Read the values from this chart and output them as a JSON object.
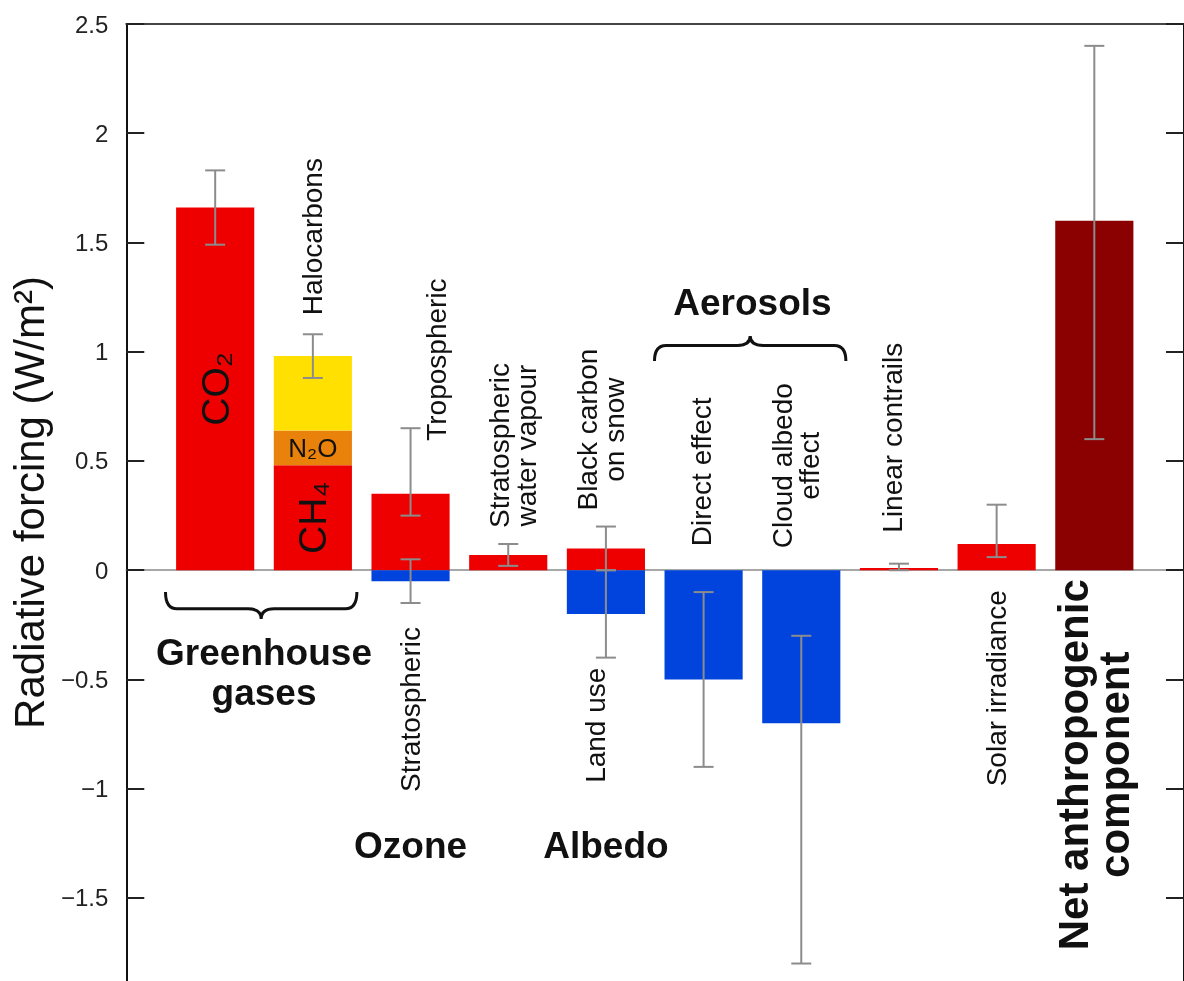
{
  "chart_data": {
    "type": "bar",
    "ylabel": "Radiative forcing (W/m²)",
    "stacked": true,
    "tick_labels": "y",
    "categories": [
      null,
      null,
      null,
      null,
      null,
      null,
      null,
      null,
      null,
      null
    ],
    "series": [
      {
        "name": "CO₂",
        "color": "#ee0000",
        "values": [
          1.66,
          null,
          null,
          null,
          null,
          null,
          null,
          null,
          null,
          null
        ],
        "errors": [
          [
            1.49,
            1.83
          ],
          null,
          null,
          null,
          null,
          null,
          null,
          null,
          null,
          null
        ]
      },
      {
        "name": "CH₄",
        "color": "#ee0000",
        "values": [
          null,
          0.48,
          null,
          null,
          null,
          null,
          null,
          null,
          null,
          null
        ]
      },
      {
        "name": "N₂O",
        "color": "#e8820a",
        "values": [
          null,
          0.16,
          null,
          null,
          null,
          null,
          null,
          null,
          null,
          null
        ]
      },
      {
        "name": "Halocarbons",
        "color": "#ffe000",
        "values": [
          null,
          0.34,
          null,
          null,
          null,
          null,
          null,
          null,
          null,
          null
        ],
        "errors": [
          null,
          [
            0.88,
            1.08
          ],
          null,
          null,
          null,
          null,
          null,
          null,
          null,
          null
        ]
      },
      {
        "name": "Tropospheric",
        "color": "#ee0000",
        "values": [
          null,
          null,
          0.35,
          null,
          null,
          null,
          null,
          null,
          null,
          null
        ],
        "errors": [
          null,
          null,
          [
            0.25,
            0.65
          ],
          null,
          null,
          null,
          null,
          null,
          null,
          null
        ]
      },
      {
        "name": "Stratospheric",
        "color": "#0044dd",
        "values": [
          null,
          null,
          -0.05,
          null,
          null,
          null,
          null,
          null,
          null,
          null
        ],
        "errors": [
          null,
          null,
          [
            -0.15,
            0.05
          ],
          null,
          null,
          null,
          null,
          null,
          null,
          null
        ]
      },
      {
        "name": "Stratospheric water vapour",
        "color": "#ee0000",
        "values": [
          null,
          null,
          null,
          0.07,
          null,
          null,
          null,
          null,
          null,
          null
        ],
        "errors": [
          null,
          null,
          null,
          [
            0.02,
            0.12
          ],
          null,
          null,
          null,
          null,
          null,
          null
        ]
      },
      {
        "name": "Black carbon on snow",
        "color": "#ee0000",
        "values": [
          null,
          null,
          null,
          null,
          0.1,
          null,
          null,
          null,
          null,
          null
        ],
        "errors": [
          null,
          null,
          null,
          null,
          [
            0,
            0.2
          ],
          null,
          null,
          null,
          null,
          null
        ]
      },
      {
        "name": "Land use",
        "color": "#0044dd",
        "values": [
          null,
          null,
          null,
          null,
          -0.2,
          null,
          null,
          null,
          null,
          null
        ],
        "errors": [
          null,
          null,
          null,
          null,
          [
            -0.4,
            0
          ],
          null,
          null,
          null,
          null,
          null
        ]
      },
      {
        "name": "Direct effect",
        "color": "#0044dd",
        "values": [
          null,
          null,
          null,
          null,
          null,
          -0.5,
          null,
          null,
          null,
          null
        ],
        "errors": [
          null,
          null,
          null,
          null,
          null,
          [
            -0.9,
            -0.1
          ],
          null,
          null,
          null,
          null
        ]
      },
      {
        "name": "Cloud albedo effect",
        "color": "#0044dd",
        "values": [
          null,
          null,
          null,
          null,
          null,
          null,
          -0.7,
          null,
          null,
          null
        ],
        "errors": [
          null,
          null,
          null,
          null,
          null,
          null,
          [
            -1.8,
            -0.3
          ],
          null,
          null,
          null
        ]
      },
      {
        "name": "Linear contrails",
        "color": "#ee0000",
        "values": [
          null,
          null,
          null,
          null,
          null,
          null,
          null,
          0.01,
          null,
          null
        ],
        "errors": [
          null,
          null,
          null,
          null,
          null,
          null,
          null,
          [
            0,
            0.03
          ],
          null,
          null
        ]
      },
      {
        "name": "Solar irradiance",
        "color": "#ee0000",
        "values": [
          null,
          null,
          null,
          null,
          null,
          null,
          null,
          null,
          0.12,
          null
        ],
        "errors": [
          null,
          null,
          null,
          null,
          null,
          null,
          null,
          null,
          [
            0.06,
            0.3
          ],
          null
        ]
      },
      {
        "name": "Net anthropogenic component",
        "color": "#8b0000",
        "values": [
          null,
          null,
          null,
          null,
          null,
          null,
          null,
          null,
          null,
          1.6
        ],
        "errors": [
          null,
          null,
          null,
          null,
          null,
          null,
          null,
          null,
          null,
          [
            0.6,
            2.4
          ]
        ]
      }
    ],
    "ylim": [
      -1.88,
      2.5
    ],
    "yticks": [
      2.5,
      2,
      1.5,
      1,
      0.5,
      0,
      {
        "value": -0.5,
        "label": "−0.5"
      },
      {
        "value": -1,
        "label": "−1"
      },
      {
        "value": -1.5,
        "label": "−1.5"
      }
    ],
    "annotations": [
      "Greenhouse gases",
      "Ozone",
      "Albedo",
      "Aerosols"
    ]
  }
}
